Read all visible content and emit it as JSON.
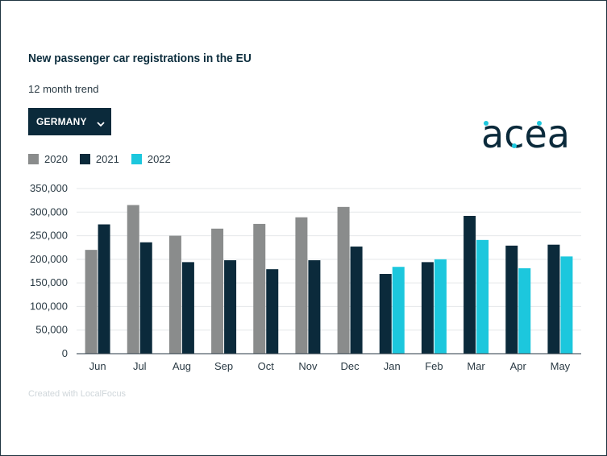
{
  "header": {
    "title": "New passenger car registrations in the EU",
    "subtitle": "12 month trend"
  },
  "dropdown": {
    "selected": "GERMANY"
  },
  "logo": {
    "text": "acea"
  },
  "legend": [
    {
      "label": "2020",
      "color": "#8a8c8c"
    },
    {
      "label": "2021",
      "color": "#0b2a3b"
    },
    {
      "label": "2022",
      "color": "#1cc7dd"
    }
  ],
  "footer": {
    "credit": "Created with LocalFocus"
  },
  "chart_data": {
    "type": "bar",
    "title": "New passenger car registrations in the EU",
    "subtitle": "12 month trend",
    "categories": [
      "Jun",
      "Jul",
      "Aug",
      "Sep",
      "Oct",
      "Nov",
      "Dec",
      "Jan",
      "Feb",
      "Mar",
      "Apr",
      "May"
    ],
    "series": [
      {
        "name": "2020",
        "color": "#8a8c8c",
        "values": [
          220000,
          315000,
          250000,
          265000,
          275000,
          289000,
          311000,
          null,
          null,
          null,
          null,
          null
        ]
      },
      {
        "name": "2021",
        "color": "#0b2a3b",
        "values": [
          274000,
          236000,
          194000,
          198000,
          179000,
          198000,
          227000,
          169000,
          194000,
          292000,
          229000,
          231000
        ]
      },
      {
        "name": "2022",
        "color": "#1cc7dd",
        "values": [
          null,
          null,
          null,
          null,
          null,
          null,
          null,
          184000,
          200000,
          241000,
          181000,
          206000
        ]
      }
    ],
    "ylim": [
      0,
      350000
    ],
    "yticks": [
      0,
      50000,
      100000,
      150000,
      200000,
      250000,
      300000,
      350000
    ],
    "ytick_labels": [
      "0",
      "50,000",
      "100,000",
      "150,000",
      "200,000",
      "250,000",
      "300,000",
      "350,000"
    ],
    "xlabel": "",
    "ylabel": "",
    "grid": true,
    "legend_position": "top-left"
  }
}
